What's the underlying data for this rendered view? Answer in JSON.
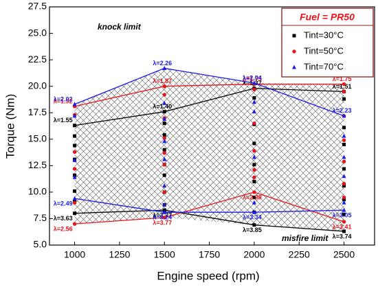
{
  "chart_data": {
    "type": "line",
    "x_label": "Engine speed (rpm)",
    "y_label": "Torque (Nm)",
    "x": [
      1000,
      1500,
      2000,
      2500
    ],
    "xlim": [
      860,
      2670
    ],
    "ylim": [
      5,
      27.5
    ],
    "xticks": [
      1000,
      1250,
      1500,
      1750,
      2000,
      2250,
      2500
    ],
    "yticks": [
      {
        "value": 5,
        "label": "5.0"
      },
      7.5,
      {
        "value": 10,
        "label": "10.0"
      },
      12.5,
      {
        "value": 15,
        "label": "15.0"
      },
      17.5,
      {
        "value": 20,
        "label": "20.0"
      },
      22.5,
      {
        "value": 25,
        "label": "25.0"
      },
      27.5
    ],
    "legend_title": "Fuel = PR50",
    "annotations": [
      "knock limit",
      "misfire limit"
    ],
    "series": [
      {
        "name": "Tint=30°C",
        "color": "#000000",
        "marker": "square",
        "upper": [
          16.3,
          17.6,
          19.8,
          19.5
        ],
        "upper_labels": [
          "λ=1.55",
          "λ=1.40",
          "λ=1.37",
          "λ=1.51"
        ],
        "lower": [
          8.0,
          8.3,
          6.9,
          6.3
        ],
        "lower_labels": [
          "λ=3.63",
          "λ=3.77",
          "λ=3.85",
          "λ=3.74"
        ],
        "points_x": [
          1000,
          1000,
          1000,
          1000,
          1000,
          1000,
          1500,
          1500,
          1500,
          1500,
          1500,
          1500,
          1500,
          2000,
          2000,
          2000,
          2000,
          2000,
          2000,
          2000,
          2500,
          2500,
          2500,
          2500,
          2500,
          2500,
          2500
        ],
        "points_y": [
          15.3,
          14.4,
          13.1,
          11.6,
          10.1,
          9.1,
          16.5,
          15.4,
          14.0,
          12.6,
          11.6,
          10.0,
          8.8,
          18.9,
          16.4,
          14.6,
          12.6,
          11.0,
          9.5,
          8.1,
          18.8,
          16.1,
          14.5,
          12.2,
          10.6,
          9.3,
          7.9
        ]
      },
      {
        "name": "Tint=50°C",
        "color": "#e8141a",
        "marker": "circle",
        "upper": [
          18.1,
          20.0,
          20.2,
          20.2
        ],
        "upper_labels": [
          "λ=1.92",
          "λ=1.87",
          "λ=1.75",
          "λ=1.75"
        ],
        "lower": [
          7.0,
          7.6,
          10.0,
          7.2
        ],
        "lower_labels": [
          "λ=2.56",
          "λ=3.77",
          "λ=2.98",
          "λ=3.41"
        ],
        "points_x": [
          1000,
          1000,
          1000,
          1000,
          1500,
          1500,
          1500,
          1500,
          1500,
          1500,
          2000,
          2000,
          2000,
          2000,
          2000,
          2500,
          2500,
          2500,
          2500,
          2500,
          2500
        ],
        "points_y": [
          17.3,
          13.8,
          12.2,
          9.0,
          19.2,
          17.0,
          15.1,
          13.7,
          12.6,
          10.0,
          19.7,
          16.5,
          13.9,
          12.1,
          11.4,
          19.5,
          17.2,
          14.9,
          12.9,
          10.8,
          9.5
        ]
      },
      {
        "name": "Tint=70°C",
        "color": "#1a1aeb",
        "marker": "triangle",
        "upper": [
          18.3,
          21.7,
          20.3,
          17.2
        ],
        "upper_labels": [
          "λ=2.02",
          "λ=2.26",
          "λ=2.04",
          "λ=2.23"
        ],
        "lower": [
          9.4,
          8.1,
          8.1,
          8.3
        ],
        "lower_labels": [
          "λ=2.49",
          "λ=3.24",
          "λ=3.34",
          "λ=3.05"
        ],
        "points_x": [
          1000,
          1000,
          1000,
          1500,
          1500,
          1500,
          1500,
          1500,
          1500,
          2000,
          2000,
          2000,
          2000,
          2500,
          2500,
          2500,
          2500
        ],
        "points_y": [
          17.2,
          13.0,
          11.4,
          18.4,
          16.9,
          14.8,
          13.1,
          10.6,
          8.8,
          18.5,
          17.6,
          13.3,
          9.0,
          15.3,
          13.3,
          11.5,
          9.0
        ]
      }
    ]
  }
}
